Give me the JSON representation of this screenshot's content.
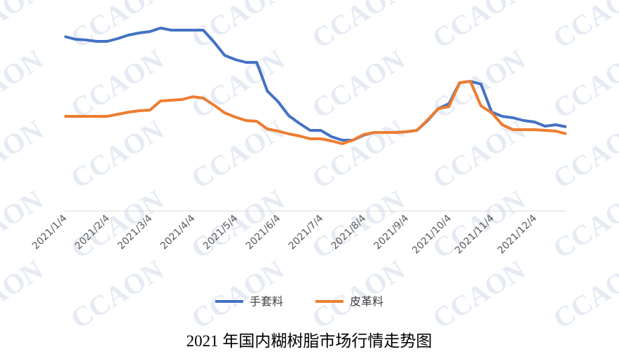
{
  "chart_data": {
    "type": "line",
    "title": "2021 年国内糊树脂市场行情走势图",
    "watermark": "CCAON",
    "categories": [
      "2021/1/4",
      null,
      null,
      null,
      "2021/2/4",
      null,
      null,
      null,
      "2021/3/4",
      null,
      null,
      null,
      "2021/4/4",
      null,
      null,
      null,
      "2021/5/4",
      null,
      null,
      null,
      "2021/6/4",
      null,
      null,
      null,
      "2021/7/4",
      null,
      null,
      null,
      "2021/8/4",
      null,
      null,
      null,
      "2021/9/4",
      null,
      null,
      null,
      "2021/10/4",
      null,
      null,
      null,
      "2021/11/4",
      null,
      null,
      null,
      "2021/12/4",
      null,
      null,
      null
    ],
    "series": [
      {
        "name": "手套料",
        "color": "#4472c4",
        "values": [
          249,
          245,
          244,
          242,
          242,
          246,
          251,
          254,
          256,
          261,
          258,
          258,
          258,
          258,
          241,
          222,
          216,
          212,
          212,
          171,
          156,
          136,
          125,
          115,
          115,
          106,
          101,
          101,
          108,
          112,
          112,
          112,
          113,
          115,
          129,
          146,
          153,
          183,
          185,
          181,
          141,
          135,
          133,
          129,
          127,
          121,
          123,
          120
        ]
      },
      {
        "name": "皮革料",
        "color": "#ed7d31",
        "values": [
          135,
          135,
          135,
          135,
          135,
          138,
          141,
          143,
          144,
          157,
          158,
          159,
          163,
          161,
          151,
          140,
          134,
          129,
          128,
          117,
          114,
          110,
          107,
          103,
          103,
          100,
          96,
          101,
          109,
          112,
          112,
          112,
          113,
          115,
          130,
          146,
          149,
          183,
          185,
          150,
          140,
          123,
          116,
          116,
          116,
          115,
          114,
          110
        ]
      }
    ],
    "ylim": [
      0,
      280
    ],
    "legend": "bottom"
  }
}
